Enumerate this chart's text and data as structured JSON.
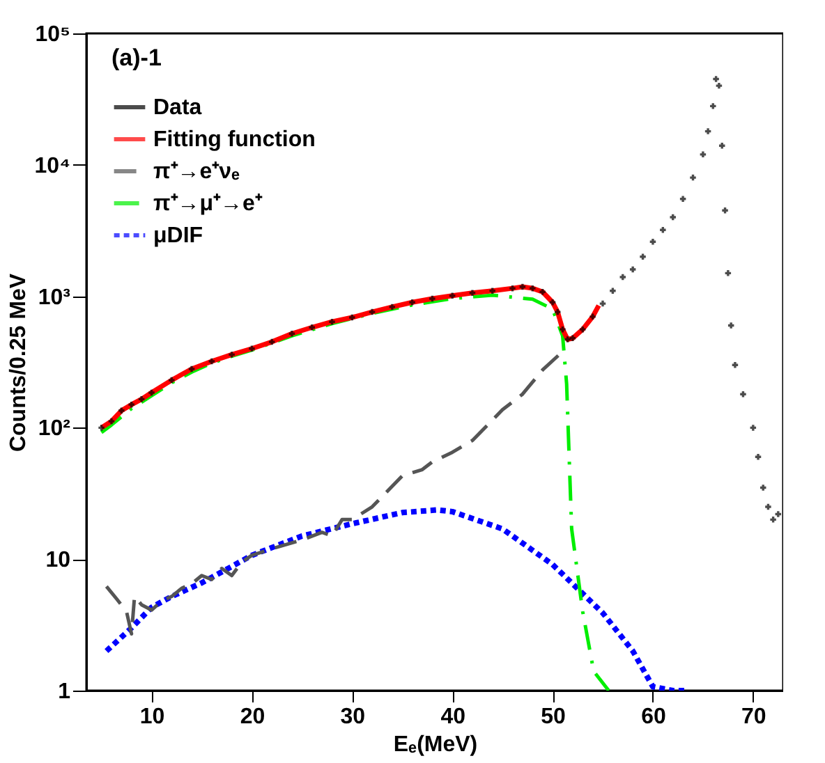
{
  "chart_data": {
    "type": "line",
    "xlabel": "Eₑ(MeV)",
    "ylabel": "Counts/0.25 MeV",
    "annotations": [
      "(a)-1"
    ],
    "log": "y",
    "xlim": [
      3.5,
      73
    ],
    "xticks": [
      10,
      20,
      30,
      40,
      50,
      60,
      70
    ],
    "ylim": [
      1,
      100000
    ],
    "yticks": [
      1,
      10,
      {
        "value": 100,
        "label": "10²"
      },
      {
        "value": 1000,
        "label": "10³"
      },
      {
        "value": 10000,
        "label": "10⁴"
      },
      {
        "value": 100000,
        "label": "10⁵"
      }
    ],
    "grid": false,
    "legend": "top left",
    "series": [
      {
        "name": "Data",
        "type": "scatter",
        "marker": "cross",
        "color": "#000000",
        "x": [
          5,
          6,
          7,
          8,
          9,
          10,
          12,
          14,
          16,
          18,
          20,
          22,
          24,
          26,
          28,
          30,
          32,
          34,
          36,
          38,
          40,
          42,
          44,
          46,
          47,
          48,
          49,
          50,
          50.5,
          51,
          51.5,
          52,
          53,
          54,
          55,
          56,
          57,
          58,
          59,
          60,
          61,
          62,
          63,
          64,
          65,
          65.5,
          66,
          66.3,
          66.6,
          66.9,
          67.2,
          67.5,
          67.8,
          68.2,
          69,
          70,
          70.5,
          71,
          71.5,
          72,
          72.5
        ],
        "values": [
          100,
          112,
          135,
          150,
          165,
          185,
          230,
          280,
          320,
          360,
          400,
          450,
          520,
          580,
          640,
          690,
          760,
          830,
          900,
          960,
          1010,
          1060,
          1100,
          1150,
          1180,
          1150,
          1080,
          900,
          760,
          560,
          470,
          480,
          560,
          700,
          880,
          1100,
          1400,
          1600,
          2000,
          2600,
          3200,
          4000,
          5500,
          8000,
          12000,
          18000,
          28000,
          45000,
          40000,
          14000,
          4500,
          1500,
          600,
          300,
          180,
          100,
          60,
          35,
          25,
          20,
          22
        ]
      },
      {
        "name": "Fitting function",
        "type": "line",
        "line_style": "solid",
        "color": "#ff0000",
        "x": [
          5,
          6,
          7,
          8,
          9,
          10,
          12,
          14,
          16,
          18,
          20,
          22,
          24,
          26,
          28,
          30,
          32,
          34,
          36,
          38,
          40,
          42,
          44,
          46,
          47,
          48,
          49,
          50,
          50.5,
          51,
          51.5,
          52,
          53,
          54,
          54.6
        ],
        "values": [
          100,
          112,
          135,
          150,
          165,
          185,
          230,
          280,
          320,
          360,
          400,
          450,
          520,
          580,
          640,
          690,
          760,
          830,
          900,
          960,
          1010,
          1060,
          1100,
          1150,
          1180,
          1150,
          1080,
          900,
          760,
          560,
          470,
          480,
          560,
          700,
          850
        ]
      },
      {
        "name": "π⁺→e⁺νₑ",
        "type": "line",
        "line_style": "dashed",
        "color": "#555555",
        "x": [
          5.5,
          6.5,
          7.5,
          8,
          8.3,
          9,
          10,
          11,
          12,
          13,
          14,
          15,
          16,
          17,
          18,
          19,
          20,
          22,
          25,
          27,
          28,
          29,
          30,
          32,
          35,
          37,
          38,
          40,
          42,
          45,
          47,
          49,
          51
        ],
        "values": [
          6.2,
          5,
          4,
          2.7,
          5.2,
          4.5,
          4.1,
          4.8,
          5.2,
          6,
          6.5,
          7.5,
          7,
          8.5,
          7.5,
          9.5,
          10.7,
          12,
          14,
          16,
          15,
          20,
          20,
          25,
          43,
          48,
          55,
          65,
          80,
          137,
          180,
          275,
          380
        ]
      },
      {
        "name": "π⁺→μ⁺→e⁺",
        "type": "line",
        "line_style": "dashdot",
        "color": "#00ee00",
        "x": [
          5,
          6,
          8,
          10,
          12,
          14,
          16,
          18,
          20,
          24,
          28,
          32,
          36,
          40,
          44,
          48,
          50,
          51,
          51.4,
          51.9,
          53,
          54.1,
          55.6
        ],
        "values": [
          92,
          105,
          140,
          175,
          220,
          265,
          310,
          350,
          390,
          500,
          620,
          740,
          860,
          960,
          1020,
          950,
          800,
          500,
          215,
          17,
          4,
          1.4,
          1
        ]
      },
      {
        "name": "μDIF",
        "type": "line",
        "line_style": "dotted",
        "color": "#0000ff",
        "x": [
          5.5,
          8,
          10,
          12,
          15,
          18,
          20,
          25,
          30,
          35,
          38.5,
          40,
          45,
          50,
          55,
          58,
          60,
          62,
          63.5
        ],
        "values": [
          2,
          3,
          4.3,
          5.2,
          6.6,
          8.8,
          10.7,
          15,
          18.6,
          22.6,
          23.7,
          23,
          17,
          9.1,
          3.9,
          2,
          1.07,
          1,
          1
        ]
      }
    ]
  }
}
